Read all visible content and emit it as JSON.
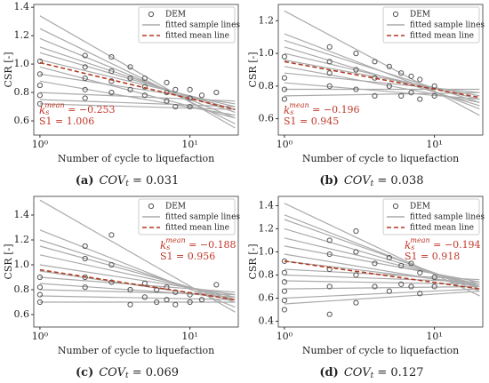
{
  "chart_data": [
    {
      "type": "line",
      "y_label": "CSR [-]",
      "x_label": "Number of cycle to liquefaction",
      "xlog": true,
      "xlim": [
        0.91,
        21
      ],
      "xticks": [
        {
          "value": 1,
          "label": "10⁰"
        },
        {
          "value": 10,
          "label": "10¹"
        }
      ],
      "ylim": [
        0.5,
        1.42
      ],
      "yticks": [
        {
          "value": 0.6,
          "label": "0.6"
        },
        {
          "value": 0.8,
          "label": "0.8"
        },
        {
          "value": 1.0,
          "label": "1.0"
        },
        {
          "value": 1.2,
          "label": "1.2"
        },
        {
          "value": 1.4,
          "label": "1.4"
        }
      ],
      "legend": "upper right",
      "annotation_loc": "lower left",
      "annotation": {
        "symbol": "k",
        "sub": "s",
        "sup": "mean",
        "text": " = −0.253",
        "s1": "S1 = 1.006"
      },
      "caption": {
        "label": "(a)",
        "var": "COV",
        "sub": "t",
        "text": " = 0.031"
      },
      "series": [
        {
          "name": "DEM",
          "type": "scatter",
          "color": "#555555",
          "x": [
            1,
            1,
            1,
            1,
            1,
            2,
            2,
            2,
            2,
            2,
            3,
            3,
            3,
            3,
            4,
            4,
            4,
            5,
            5,
            5,
            7,
            7,
            7,
            8,
            8,
            10,
            10,
            10,
            12,
            15
          ],
          "values": [
            0.93,
            0.85,
            0.78,
            0.72,
            1.02,
            1.06,
            0.98,
            0.9,
            0.82,
            0.76,
            1.05,
            0.95,
            0.88,
            0.8,
            0.98,
            0.9,
            0.82,
            0.9,
            0.84,
            0.78,
            0.87,
            0.8,
            0.74,
            0.82,
            0.7,
            0.82,
            0.76,
            0.7,
            0.78,
            0.8
          ]
        },
        {
          "name": "fitted sample lines",
          "color": "#aaaaaa",
          "lines": [
            {
              "x": [
                1,
                20
              ],
              "values": [
                1.34,
                0.55
              ]
            },
            {
              "x": [
                1,
                20
              ],
              "values": [
                1.25,
                0.58
              ]
            },
            {
              "x": [
                1,
                20
              ],
              "values": [
                1.18,
                0.62
              ]
            },
            {
              "x": [
                1,
                20
              ],
              "values": [
                1.12,
                0.66
              ]
            },
            {
              "x": [
                1,
                20
              ],
              "values": [
                1.08,
                0.68
              ]
            },
            {
              "x": [
                1,
                20
              ],
              "values": [
                1.03,
                0.7
              ]
            },
            {
              "x": [
                1,
                20
              ],
              "values": [
                0.98,
                0.62
              ]
            },
            {
              "x": [
                1,
                20
              ],
              "values": [
                0.93,
                0.72
              ]
            },
            {
              "x": [
                1,
                20
              ],
              "values": [
                0.88,
                0.64
              ]
            },
            {
              "x": [
                1,
                20
              ],
              "values": [
                0.8,
                0.74
              ]
            },
            {
              "x": [
                1,
                20
              ],
              "values": [
                0.75,
                0.7
              ]
            },
            {
              "x": [
                1,
                20
              ],
              "values": [
                0.72,
                0.68
              ]
            }
          ]
        },
        {
          "name": "fitted mean line",
          "color": "#b03a20",
          "dashed": true,
          "x": [
            1,
            20
          ],
          "values": [
            1.01,
            0.68
          ]
        }
      ]
    },
    {
      "type": "line",
      "y_label": "CSR [-]",
      "x_label": "Number of cycle to liquefaction",
      "xlog": true,
      "xlim": [
        0.91,
        21
      ],
      "xticks": [
        {
          "value": 1,
          "label": "10⁰"
        },
        {
          "value": 10,
          "label": "10¹"
        }
      ],
      "ylim": [
        0.5,
        1.3
      ],
      "yticks": [
        {
          "value": 0.6,
          "label": "0.6"
        },
        {
          "value": 0.8,
          "label": "0.8"
        },
        {
          "value": 1.0,
          "label": "1.0"
        },
        {
          "value": 1.2,
          "label": "1.2"
        }
      ],
      "legend": "upper right",
      "annotation_loc": "lower left",
      "annotation": {
        "symbol": "k",
        "sub": "s",
        "sup": "mean",
        "text": " = −0.196",
        "s1": "S1 = 0.945"
      },
      "caption": {
        "label": "(b)",
        "var": "COV",
        "sub": "t",
        "text": " = 0.038"
      },
      "series": [
        {
          "name": "DEM",
          "type": "scatter",
          "color": "#555555",
          "x": [
            1,
            1,
            1,
            1,
            2,
            2,
            2,
            2,
            3,
            3,
            3,
            4,
            4,
            4,
            5,
            5,
            6,
            6,
            7,
            7,
            8,
            8,
            10,
            10
          ],
          "values": [
            0.98,
            0.85,
            0.78,
            0.72,
            1.04,
            0.95,
            0.88,
            0.8,
            1.0,
            0.9,
            0.78,
            0.95,
            0.85,
            0.74,
            0.92,
            0.8,
            0.88,
            0.74,
            0.86,
            0.76,
            0.84,
            0.72,
            0.8,
            0.74
          ]
        },
        {
          "name": "fitted sample lines",
          "color": "#aaaaaa",
          "lines": [
            {
              "x": [
                1,
                20
              ],
              "values": [
                1.26,
                0.62
              ]
            },
            {
              "x": [
                1,
                20
              ],
              "values": [
                1.12,
                0.66
              ]
            },
            {
              "x": [
                1,
                20
              ],
              "values": [
                1.08,
                0.7
              ]
            },
            {
              "x": [
                1,
                20
              ],
              "values": [
                1.04,
                0.68
              ]
            },
            {
              "x": [
                1,
                20
              ],
              "values": [
                1.0,
                0.72
              ]
            },
            {
              "x": [
                1,
                20
              ],
              "values": [
                0.96,
                0.74
              ]
            },
            {
              "x": [
                1,
                20
              ],
              "values": [
                0.92,
                0.7
              ]
            },
            {
              "x": [
                1,
                20
              ],
              "values": [
                0.88,
                0.76
              ]
            },
            {
              "x": [
                1,
                20
              ],
              "values": [
                0.82,
                0.72
              ]
            },
            {
              "x": [
                1,
                20
              ],
              "values": [
                0.78,
                0.78
              ]
            },
            {
              "x": [
                1,
                20
              ],
              "values": [
                0.74,
                0.76
              ]
            }
          ]
        },
        {
          "name": "fitted mean line",
          "color": "#b03a20",
          "dashed": true,
          "x": [
            1,
            20
          ],
          "values": [
            0.95,
            0.73
          ]
        }
      ]
    },
    {
      "type": "line",
      "y_label": "CSR [-]",
      "x_label": "Number of cycle to liquefaction",
      "xlog": true,
      "xlim": [
        0.91,
        21
      ],
      "xticks": [
        {
          "value": 1,
          "label": "10⁰"
        },
        {
          "value": 10,
          "label": "10¹"
        }
      ],
      "ylim": [
        0.5,
        1.55
      ],
      "yticks": [
        {
          "value": 0.6,
          "label": "0.6"
        },
        {
          "value": 0.8,
          "label": "0.8"
        },
        {
          "value": 1.0,
          "label": "1.0"
        },
        {
          "value": 1.2,
          "label": "1.2"
        },
        {
          "value": 1.4,
          "label": "1.4"
        }
      ],
      "legend": "upper right",
      "annotation_loc": "upper right",
      "annotation": {
        "symbol": "k",
        "sub": "s",
        "sup": "mean",
        "text": " = −0.188",
        "s1": "S1 = 0.956"
      },
      "caption": {
        "label": "(c)",
        "var": "COV",
        "sub": "t",
        "text": " = 0.069"
      },
      "series": [
        {
          "name": "DEM",
          "type": "scatter",
          "color": "#555555",
          "x": [
            1,
            1,
            1,
            1,
            2,
            2,
            2,
            2,
            3,
            3,
            3,
            4,
            4,
            5,
            5,
            6,
            6,
            7,
            7,
            8,
            8,
            10,
            10,
            12,
            15
          ],
          "values": [
            0.9,
            0.82,
            0.76,
            0.7,
            1.15,
            1.05,
            0.9,
            0.82,
            1.24,
            1.0,
            0.86,
            0.8,
            0.68,
            0.85,
            0.74,
            0.8,
            0.7,
            0.82,
            0.72,
            0.78,
            0.68,
            0.76,
            0.7,
            0.72,
            0.84
          ]
        },
        {
          "name": "fitted sample lines",
          "color": "#aaaaaa",
          "lines": [
            {
              "x": [
                1,
                20
              ],
              "values": [
                1.52,
                0.62
              ]
            },
            {
              "x": [
                1,
                20
              ],
              "values": [
                1.28,
                0.66
              ]
            },
            {
              "x": [
                1,
                20
              ],
              "values": [
                1.2,
                0.7
              ]
            },
            {
              "x": [
                1,
                20
              ],
              "values": [
                1.15,
                0.72
              ]
            },
            {
              "x": [
                1,
                20
              ],
              "values": [
                1.08,
                0.74
              ]
            },
            {
              "x": [
                1,
                20
              ],
              "values": [
                1.0,
                0.76
              ]
            },
            {
              "x": [
                1,
                20
              ],
              "values": [
                0.95,
                0.72
              ]
            },
            {
              "x": [
                1,
                20
              ],
              "values": [
                0.9,
                0.78
              ]
            },
            {
              "x": [
                1,
                20
              ],
              "values": [
                0.85,
                0.74
              ]
            },
            {
              "x": [
                1,
                20
              ],
              "values": [
                0.8,
                0.76
              ]
            },
            {
              "x": [
                1,
                20
              ],
              "values": [
                0.75,
                0.72
              ]
            },
            {
              "x": [
                1,
                20
              ],
              "values": [
                0.7,
                0.7
              ]
            }
          ]
        },
        {
          "name": "fitted mean line",
          "color": "#b03a20",
          "dashed": true,
          "x": [
            1,
            20
          ],
          "values": [
            0.96,
            0.72
          ]
        }
      ]
    },
    {
      "type": "line",
      "y_label": "CSR [-]",
      "x_label": "Number of cycle to liquefaction",
      "xlog": true,
      "xlim": [
        0.91,
        21
      ],
      "xticks": [
        {
          "value": 1,
          "label": "10⁰"
        },
        {
          "value": 10,
          "label": "10¹"
        }
      ],
      "ylim": [
        0.35,
        1.48
      ],
      "yticks": [
        {
          "value": 0.4,
          "label": "0.4"
        },
        {
          "value": 0.6,
          "label": "0.6"
        },
        {
          "value": 0.8,
          "label": "0.8"
        },
        {
          "value": 1.0,
          "label": "1.0"
        },
        {
          "value": 1.2,
          "label": "1.2"
        },
        {
          "value": 1.4,
          "label": "1.4"
        }
      ],
      "legend": "upper right",
      "annotation_loc": "upper right",
      "annotation": {
        "symbol": "k",
        "sub": "s",
        "sup": "mean",
        "text": " = −0.194",
        "s1": "S1 = 0.918"
      },
      "caption": {
        "label": "(d)",
        "var": "COV",
        "sub": "t",
        "text": " = 0.127"
      },
      "series": [
        {
          "name": "DEM",
          "type": "scatter",
          "color": "#555555",
          "x": [
            1,
            1,
            1,
            1,
            1,
            1,
            2,
            2,
            2,
            2,
            2,
            3,
            3,
            3,
            3,
            4,
            4,
            5,
            5,
            6,
            6,
            7,
            7,
            8,
            8,
            10,
            10
          ],
          "values": [
            0.92,
            0.82,
            0.74,
            0.66,
            0.58,
            0.5,
            1.1,
            0.98,
            0.85,
            0.7,
            0.46,
            1.18,
            1.0,
            0.8,
            0.56,
            0.9,
            0.7,
            0.95,
            0.66,
            0.88,
            0.72,
            0.9,
            0.7,
            0.82,
            0.64,
            0.78,
            0.7
          ]
        },
        {
          "name": "fitted sample lines",
          "color": "#aaaaaa",
          "lines": [
            {
              "x": [
                1,
                20
              ],
              "values": [
                1.42,
                0.62
              ]
            },
            {
              "x": [
                1,
                20
              ],
              "values": [
                1.32,
                0.66
              ]
            },
            {
              "x": [
                1,
                20
              ],
              "values": [
                1.28,
                0.68
              ]
            },
            {
              "x": [
                1,
                20
              ],
              "values": [
                1.2,
                0.7
              ]
            },
            {
              "x": [
                1,
                20
              ],
              "values": [
                1.12,
                0.72
              ]
            },
            {
              "x": [
                1,
                20
              ],
              "values": [
                1.05,
                0.74
              ]
            },
            {
              "x": [
                1,
                20
              ],
              "values": [
                0.98,
                0.7
              ]
            },
            {
              "x": [
                1,
                20
              ],
              "values": [
                0.92,
                0.72
              ]
            },
            {
              "x": [
                1,
                20
              ],
              "values": [
                0.85,
                0.76
              ]
            },
            {
              "x": [
                1,
                20
              ],
              "values": [
                0.8,
                0.74
              ]
            },
            {
              "x": [
                1,
                20
              ],
              "values": [
                0.75,
                0.72
              ]
            },
            {
              "x": [
                1,
                20
              ],
              "values": [
                0.68,
                0.7
              ]
            },
            {
              "x": [
                1,
                20
              ],
              "values": [
                0.6,
                0.68
              ]
            },
            {
              "x": [
                1,
                20
              ],
              "values": [
                0.55,
                0.66
              ]
            }
          ]
        },
        {
          "name": "fitted mean line",
          "color": "#b03a20",
          "dashed": true,
          "x": [
            1,
            20
          ],
          "values": [
            0.92,
            0.68
          ]
        }
      ]
    }
  ]
}
